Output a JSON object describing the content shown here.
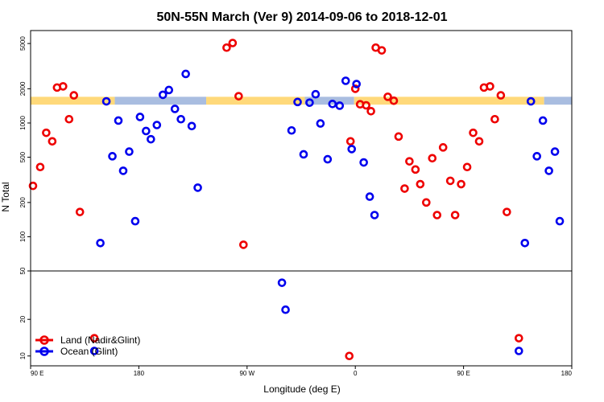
{
  "chart_data": {
    "type": "scatter",
    "title": "50N-55N March (Ver 9)   2014-09-06 to 2018-12-01",
    "xlabel": "Longitude (deg E)",
    "ylabel": "N Total",
    "x_ticks": [
      {
        "value": 90,
        "label": "90 E"
      },
      {
        "value": 180,
        "label": "180"
      },
      {
        "value": 270,
        "label": "90 W"
      },
      {
        "value": 360,
        "label": "0"
      },
      {
        "value": 450,
        "label": "90 E"
      },
      {
        "value": 540,
        "label": "180"
      }
    ],
    "xlim": [
      90,
      540
    ],
    "y_scale": "log",
    "upper_ylim": [
      50,
      6500
    ],
    "upper_yticks": [
      {
        "value": 100,
        "label": "100"
      },
      {
        "value": 200,
        "label": "200"
      },
      {
        "value": 500,
        "label": "500"
      },
      {
        "value": 1000,
        "label": "1000"
      },
      {
        "value": 2000,
        "label": "2000"
      },
      {
        "value": 5000,
        "label": "5000"
      }
    ],
    "lower_ylim": [
      8.3,
      50
    ],
    "lower_yticks": [
      {
        "value": 10,
        "label": "10"
      },
      {
        "value": 20,
        "label": "20"
      },
      {
        "value": 50,
        "label": "50"
      }
    ],
    "grid": false,
    "legend_position": "bottom-left",
    "background_band": {
      "y_range": [
        1450,
        1700
      ],
      "land_color": "#ffd97a",
      "ocean_color": "#a9bde0",
      "segments": [
        {
          "type": "land",
          "x0": 90,
          "x1": 160
        },
        {
          "type": "ocean",
          "x0": 160,
          "x1": 236
        },
        {
          "type": "land",
          "x0": 236,
          "x1": 318
        },
        {
          "type": "ocean",
          "x0": 318,
          "x1": 359
        },
        {
          "type": "land",
          "x0": 359,
          "x1": 517
        },
        {
          "type": "ocean",
          "x0": 517,
          "x1": 540
        }
      ]
    },
    "series": [
      {
        "name": "Land (Nadir&Glint)",
        "color": "#ee0000",
        "points": [
          [
            92,
            280
          ],
          [
            98,
            410
          ],
          [
            103,
            820
          ],
          [
            108,
            690
          ],
          [
            112,
            2050
          ],
          [
            117,
            2100
          ],
          [
            122,
            1080
          ],
          [
            126,
            1750
          ],
          [
            131,
            165
          ],
          [
            143,
            14
          ],
          [
            253,
            4600
          ],
          [
            258,
            5050
          ],
          [
            263,
            1720
          ],
          [
            267,
            85
          ],
          [
            355,
            10
          ],
          [
            356,
            690
          ],
          [
            360,
            2000
          ],
          [
            364,
            1460
          ],
          [
            369,
            1430
          ],
          [
            373,
            1270
          ],
          [
            377,
            4600
          ],
          [
            382,
            4350
          ],
          [
            387,
            1700
          ],
          [
            392,
            1570
          ],
          [
            396,
            760
          ],
          [
            401,
            265
          ],
          [
            405,
            460
          ],
          [
            410,
            390
          ],
          [
            414,
            290
          ],
          [
            419,
            200
          ],
          [
            424,
            490
          ],
          [
            428,
            155
          ],
          [
            433,
            610
          ],
          [
            439,
            310
          ],
          [
            443,
            155
          ],
          [
            448,
            290
          ],
          [
            453,
            410
          ],
          [
            458,
            820
          ],
          [
            463,
            690
          ],
          [
            467,
            2050
          ],
          [
            472,
            2100
          ],
          [
            476,
            1080
          ],
          [
            481,
            1750
          ],
          [
            486,
            165
          ],
          [
            496,
            14
          ]
        ]
      },
      {
        "name": "Ocean (Glint)",
        "color": "#0000ee",
        "points": [
          [
            143,
            11
          ],
          [
            148,
            88
          ],
          [
            153,
            1550
          ],
          [
            158,
            510
          ],
          [
            163,
            1050
          ],
          [
            167,
            380
          ],
          [
            172,
            560
          ],
          [
            177,
            137
          ],
          [
            181,
            1130
          ],
          [
            186,
            850
          ],
          [
            190,
            720
          ],
          [
            195,
            960
          ],
          [
            200,
            1770
          ],
          [
            205,
            1950
          ],
          [
            210,
            1330
          ],
          [
            215,
            1080
          ],
          [
            219,
            2700
          ],
          [
            224,
            940
          ],
          [
            229,
            270
          ],
          [
            299,
            40
          ],
          [
            302,
            24
          ],
          [
            307,
            860
          ],
          [
            312,
            1530
          ],
          [
            317,
            530
          ],
          [
            322,
            1510
          ],
          [
            327,
            1790
          ],
          [
            331,
            990
          ],
          [
            337,
            480
          ],
          [
            341,
            1470
          ],
          [
            347,
            1420
          ],
          [
            352,
            2350
          ],
          [
            357,
            590
          ],
          [
            361,
            2200
          ],
          [
            367,
            450
          ],
          [
            372,
            225
          ],
          [
            376,
            155
          ],
          [
            496,
            11
          ],
          [
            501,
            88
          ],
          [
            506,
            1550
          ],
          [
            511,
            510
          ],
          [
            516,
            1050
          ],
          [
            521,
            380
          ],
          [
            526,
            560
          ],
          [
            530,
            137
          ]
        ]
      }
    ]
  }
}
